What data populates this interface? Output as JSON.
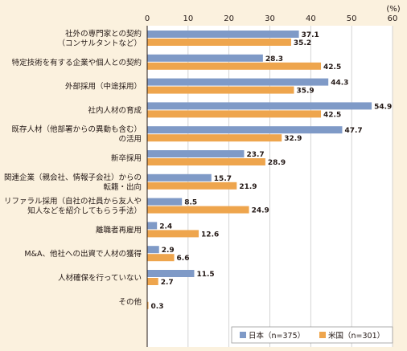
{
  "chart_data": {
    "type": "bar",
    "orientation": "horizontal",
    "unit_label": "(%)",
    "xlim": [
      0,
      60
    ],
    "xticks": [
      0,
      10,
      20,
      30,
      40,
      50,
      60
    ],
    "grid": true,
    "legend_position": "bottom-right",
    "categories": [
      [
        "社外の専門家との契約",
        "（コンサルタントなど）"
      ],
      [
        "特定技術を有する企業や個人との契約"
      ],
      [
        "外部採用（中途採用）"
      ],
      [
        "社内人材の育成"
      ],
      [
        "既存人材（他部署からの異動も含む）",
        "の活用"
      ],
      [
        "新卒採用"
      ],
      [
        "関連企業（親会社、情報子会社）からの",
        "転籍・出向"
      ],
      [
        "リファラル採用（自社の社員から友人や",
        "知人などを紹介してもらう手法）"
      ],
      [
        "離職者再雇用"
      ],
      [
        "M&A、他社への出資で人材の獲得"
      ],
      [
        "人材確保を行っていない"
      ],
      [
        "その他"
      ]
    ],
    "series": [
      {
        "name": "日本（n=375）",
        "color": "#7f9ac7",
        "values": [
          37.1,
          28.3,
          44.3,
          54.9,
          47.7,
          23.7,
          15.7,
          8.5,
          2.4,
          2.9,
          11.5,
          null
        ],
        "labels": [
          "37.1",
          "28.3",
          "44.3",
          "54.9",
          "47.7",
          "23.7",
          "15.7",
          "8.5",
          "2.4",
          "2.9",
          "11.5",
          ""
        ]
      },
      {
        "name": "米国（n=301）",
        "color": "#eea54d",
        "values": [
          35.2,
          42.5,
          35.9,
          42.5,
          32.9,
          28.9,
          21.9,
          24.9,
          12.6,
          6.6,
          2.7,
          0.3
        ],
        "labels": [
          "35.2",
          "42.5",
          "35.9",
          "42.5",
          "32.9",
          "28.9",
          "21.9",
          "24.9",
          "12.6",
          "6.6",
          "2.7",
          "0.3"
        ]
      }
    ]
  }
}
